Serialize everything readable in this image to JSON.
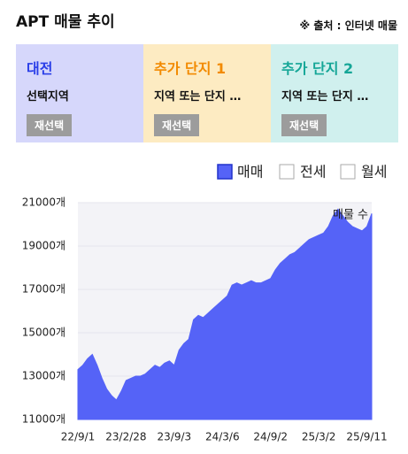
{
  "header": {
    "title": "APT 매물 추이",
    "source": "※ 출처 : 인터넷 매물"
  },
  "panels": [
    {
      "title": "대전",
      "subtitle": "선택지역",
      "button": "재선택"
    },
    {
      "title": "추가 단지 1",
      "subtitle": "지역 또는 단지 …",
      "button": "재선택"
    },
    {
      "title": "추가 단지 2",
      "subtitle": "지역 또는 단지 …",
      "button": "재선택"
    }
  ],
  "chart_data": {
    "type": "area",
    "annotation": "매물 수",
    "categories": [
      "22/9/1",
      null,
      null,
      null,
      null,
      null,
      null,
      null,
      null,
      null,
      "23/2/28",
      null,
      null,
      null,
      null,
      null,
      null,
      null,
      null,
      null,
      "23/9/3",
      null,
      null,
      null,
      null,
      null,
      null,
      null,
      null,
      null,
      "24/3/6",
      null,
      null,
      null,
      null,
      null,
      null,
      null,
      null,
      null,
      "24/9/2",
      null,
      null,
      null,
      null,
      null,
      null,
      null,
      null,
      null,
      "25/3/2",
      null,
      null,
      null,
      null,
      null,
      null,
      null,
      null,
      null,
      "25/9/11",
      null
    ],
    "series": [
      {
        "name": "매매",
        "color": "#5563f7",
        "values": [
          13300,
          13500,
          13800,
          14000,
          13500,
          12900,
          12400,
          12100,
          11900,
          12300,
          12800,
          12900,
          13000,
          13000,
          13100,
          13300,
          13500,
          13400,
          13600,
          13700,
          13500,
          14200,
          14500,
          14700,
          15600,
          15800,
          15700,
          15900,
          16100,
          16300,
          16500,
          16700,
          17200,
          17300,
          17200,
          17300,
          17400,
          17300,
          17300,
          17400,
          17500,
          17900,
          18200,
          18400,
          18600,
          18700,
          18900,
          19100,
          19300,
          19400,
          19500,
          19600,
          19900,
          20400,
          20700,
          20400,
          20100,
          19900,
          19800,
          19700,
          19900,
          20500
        ]
      }
    ],
    "unselected_series": [
      "전세",
      "월세"
    ],
    "ylim": [
      11000,
      21000
    ],
    "yticks": [
      {
        "value": 11000,
        "label": "11000개"
      },
      {
        "value": 13000,
        "label": "13000개"
      },
      {
        "value": 15000,
        "label": "15000개"
      },
      {
        "value": 17000,
        "label": "17000개"
      },
      {
        "value": 19000,
        "label": "19000개"
      },
      {
        "value": 21000,
        "label": "21000개"
      }
    ],
    "grid": true
  }
}
